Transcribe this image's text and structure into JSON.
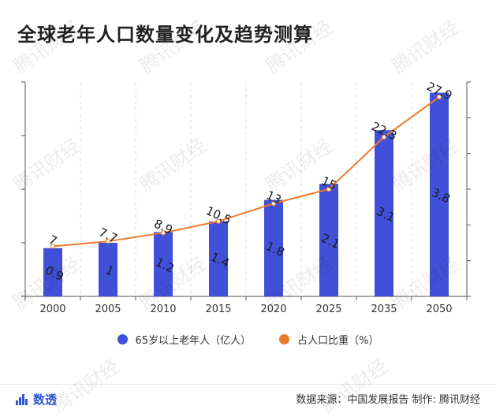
{
  "title": "全球老年人口数量变化及趋势测算",
  "watermark": "腾讯财经",
  "logo_text": "数透",
  "source": "数据来源：中国发展报告 制作: 腾讯财经",
  "colors": {
    "bar": "#4150d9",
    "line": "#ec7a2c",
    "axis": "#555555",
    "grid": "#dddddd"
  },
  "chart_data": {
    "type": "bar",
    "categories": [
      "2000",
      "2005",
      "2010",
      "2015",
      "2020",
      "2025",
      "2035",
      "2050"
    ],
    "ylim_left": [
      0,
      4
    ],
    "ylim_right": [
      0,
      30
    ],
    "series": [
      {
        "name": "65岁以上老年人（亿人）",
        "type": "bar",
        "values": [
          0.9,
          1,
          1.2,
          1.4,
          1.8,
          2.1,
          3.1,
          3.8
        ],
        "labels": [
          "0.9",
          "1",
          "1.2",
          "1.4",
          "1.8",
          "2.1",
          "3.1",
          "3.8"
        ]
      },
      {
        "name": "占人口比重（%）",
        "type": "line",
        "values": [
          7,
          7.7,
          8.9,
          10.5,
          13,
          15,
          22.3,
          27.9
        ],
        "labels": [
          "7",
          "7.7",
          "8.9",
          "10.5",
          "13",
          "15",
          "22.3",
          "27.9"
        ]
      }
    ]
  }
}
